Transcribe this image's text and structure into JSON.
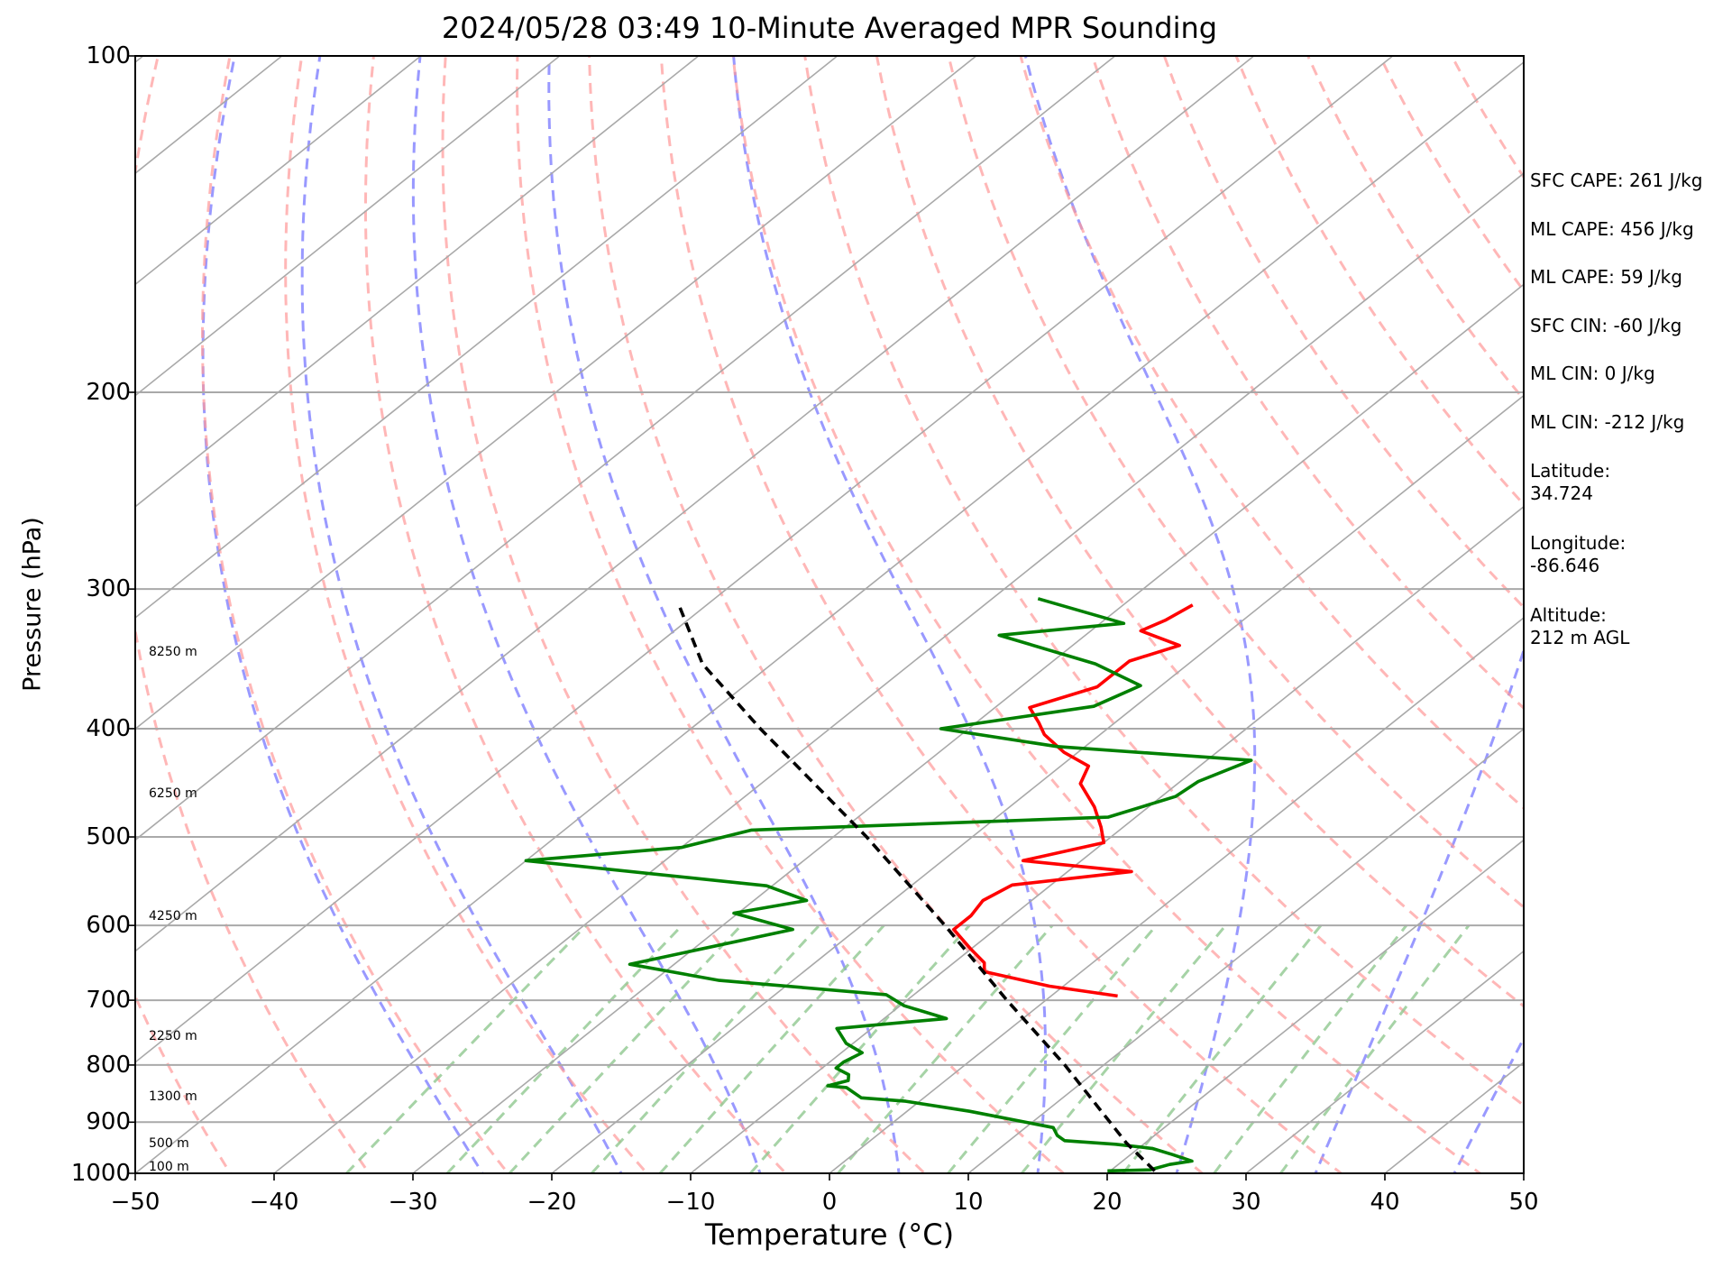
{
  "chart_data": {
    "type": "line",
    "title": "2024/05/28 03:49 10-Minute Averaged MPR Sounding",
    "xlabel": "Temperature (°C)",
    "ylabel": "Pressure (hPa)",
    "xlim": [
      -50,
      50
    ],
    "ylim": [
      1000,
      100
    ],
    "y_scale": "log",
    "x_ticks": [
      -50,
      -40,
      -30,
      -20,
      -10,
      0,
      10,
      20,
      30,
      40,
      50
    ],
    "x_tick_labels": [
      "−50",
      "−40",
      "−30",
      "−20",
      "−10",
      "0",
      "10",
      "20",
      "30",
      "40",
      "50"
    ],
    "y_ticks": [
      1000,
      900,
      800,
      700,
      600,
      500,
      400,
      300,
      200,
      100
    ],
    "y_tick_labels": [
      "1000",
      "900",
      "800",
      "700",
      "600",
      "500",
      "400",
      "300",
      "200",
      "100"
    ],
    "grid": true,
    "skew": true,
    "series": [
      {
        "role": "temperature",
        "color": "#ff0000",
        "points": [
          [
            694,
            4.8
          ],
          [
            680,
            -1.0
          ],
          [
            660,
            -7.0
          ],
          [
            648,
            -7.8
          ],
          [
            630,
            -10.0
          ],
          [
            605,
            -13.0
          ],
          [
            588,
            -13.0
          ],
          [
            570,
            -13.5
          ],
          [
            552,
            -12.8
          ],
          [
            537,
            -5.4
          ],
          [
            525,
            -14.2
          ],
          [
            506,
            -10.0
          ],
          [
            490,
            -11.6
          ],
          [
            470,
            -13.9
          ],
          [
            448,
            -17.0
          ],
          [
            432,
            -18.0
          ],
          [
            420,
            -21.0
          ],
          [
            405,
            -24.0
          ],
          [
            395,
            -25.5
          ],
          [
            383,
            -27.5
          ],
          [
            367,
            -24.5
          ],
          [
            348,
            -24.5
          ],
          [
            337,
            -22.3
          ],
          [
            327,
            -26.4
          ],
          [
            320,
            -25.6
          ],
          [
            310,
            -25.0
          ]
        ]
      },
      {
        "role": "dewpoint",
        "color": "#008000",
        "points": [
          [
            995,
            19.8
          ],
          [
            993,
            22.8
          ],
          [
            990,
            23.0
          ],
          [
            982,
            23.7
          ],
          [
            975,
            25.0
          ],
          [
            962,
            23.0
          ],
          [
            950,
            21.0
          ],
          [
            942,
            18.0
          ],
          [
            935,
            14.0
          ],
          [
            925,
            13.0
          ],
          [
            910,
            12.0
          ],
          [
            880,
            4.5
          ],
          [
            862,
            -1.0
          ],
          [
            856,
            -4.5
          ],
          [
            838,
            -6.5
          ],
          [
            835,
            -8.0
          ],
          [
            826,
            -7.0
          ],
          [
            816,
            -7.5
          ],
          [
            805,
            -9.0
          ],
          [
            795,
            -9.0
          ],
          [
            780,
            -8.5
          ],
          [
            765,
            -10.5
          ],
          [
            742,
            -12.5
          ],
          [
            727,
            -5.5
          ],
          [
            708,
            -9.7
          ],
          [
            692,
            -12.0
          ],
          [
            672,
            -25.3
          ],
          [
            650,
            -33.2
          ],
          [
            605,
            -24.6
          ],
          [
            585,
            -30.3
          ],
          [
            570,
            -26.2
          ],
          [
            553,
            -30.4
          ],
          [
            525,
            -50.0
          ],
          [
            511,
            -40.0
          ],
          [
            493,
            -36.5
          ],
          [
            480,
            -12.0
          ],
          [
            460,
            -9.0
          ],
          [
            446,
            -8.7
          ],
          [
            427,
            -6.8
          ],
          [
            415,
            -22.0
          ],
          [
            400,
            -32.0
          ],
          [
            382,
            -23.0
          ],
          [
            366,
            -21.5
          ],
          [
            350,
            -26.7
          ],
          [
            330,
            -36.2
          ],
          [
            322,
            -28.3
          ],
          [
            306,
            -36.7
          ]
        ]
      },
      {
        "role": "parcel",
        "color": "#000000",
        "style": "dashed",
        "points": [
          [
            995,
            23.2
          ],
          [
            940,
            18.7
          ],
          [
            900,
            15.6
          ],
          [
            800,
            7.2
          ],
          [
            700,
            -2.8
          ],
          [
            600,
            -14.0
          ],
          [
            500,
            -27.6
          ],
          [
            400,
            -45.0
          ],
          [
            350,
            -55.0
          ],
          [
            310,
            -62.0
          ]
        ]
      }
    ],
    "height_labels": [
      {
        "label": "100 m",
        "p": 988
      },
      {
        "label": "500 m",
        "p": 942
      },
      {
        "label": "1300 m",
        "p": 855
      },
      {
        "label": "2250 m",
        "p": 755
      },
      {
        "label": "4250 m",
        "p": 590
      },
      {
        "label": "6250 m",
        "p": 458
      },
      {
        "label": "8250 m",
        "p": 342
      }
    ]
  },
  "annotations": [
    {
      "label": "SFC CAPE: 261 J/kg"
    },
    {
      "label": "ML CAPE: 456 J/kg"
    },
    {
      "label": "ML CAPE: 59 J/kg"
    },
    {
      "label": "SFC CIN: -60 J/kg"
    },
    {
      "label": "ML CIN: 0 J/kg"
    },
    {
      "label": "ML CIN: -212 J/kg"
    },
    {
      "label": "Latitude:",
      "value": "34.724"
    },
    {
      "label": "Longitude:",
      "value": "-86.646"
    },
    {
      "label": "Altitude:",
      "value": "212 m AGL"
    }
  ],
  "colors": {
    "isotherm": "#a9a9a9",
    "dry_adiabat": "#ff9999",
    "moist_adiabat": "#9999ff",
    "mixing_ratio": "#90c890"
  }
}
